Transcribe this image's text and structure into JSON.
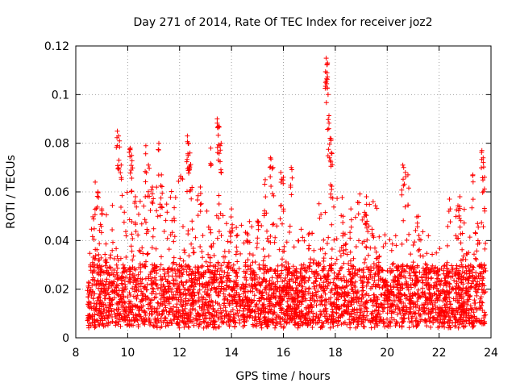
{
  "chart_data": {
    "type": "scatter",
    "title": "Day 271 of 2014, Rate Of TEC Index for receiver joz2",
    "xlabel": "GPS time / hours",
    "ylabel": "ROTI / TECUs",
    "xlim": [
      8,
      24
    ],
    "ylim": [
      0,
      0.12
    ],
    "grid": true,
    "marker": "+",
    "color": "#ff0000",
    "x_ticks": [
      8,
      10,
      12,
      14,
      16,
      18,
      20,
      22,
      24
    ],
    "y_ticks": [
      0,
      0.02,
      0.04,
      0.06,
      0.08,
      0.1,
      0.12
    ],
    "x_tick_labels": [
      "8",
      "10",
      "12",
      "14",
      "16",
      "18",
      "20",
      "22",
      "24"
    ],
    "y_tick_labels": [
      "0",
      "0.02",
      "0.04",
      "0.06",
      "0.08",
      "0.1",
      "0.12"
    ],
    "time_range": [
      8.45,
      23.8
    ],
    "baseline_band": [
      0.004,
      0.03
    ],
    "peaks": [
      {
        "x": 8.75,
        "y": 0.064
      },
      {
        "x": 8.85,
        "y": 0.06
      },
      {
        "x": 9.0,
        "y": 0.053
      },
      {
        "x": 9.6,
        "y": 0.085
      },
      {
        "x": 9.65,
        "y": 0.083
      },
      {
        "x": 9.75,
        "y": 0.071
      },
      {
        "x": 10.1,
        "y": 0.078
      },
      {
        "x": 10.15,
        "y": 0.075
      },
      {
        "x": 10.3,
        "y": 0.058
      },
      {
        "x": 10.7,
        "y": 0.079
      },
      {
        "x": 10.8,
        "y": 0.071
      },
      {
        "x": 10.95,
        "y": 0.062
      },
      {
        "x": 11.2,
        "y": 0.08
      },
      {
        "x": 11.3,
        "y": 0.067
      },
      {
        "x": 11.5,
        "y": 0.055
      },
      {
        "x": 12.3,
        "y": 0.083
      },
      {
        "x": 12.35,
        "y": 0.08
      },
      {
        "x": 12.4,
        "y": 0.076
      },
      {
        "x": 12.8,
        "y": 0.062
      },
      {
        "x": 13.2,
        "y": 0.078
      },
      {
        "x": 13.45,
        "y": 0.09
      },
      {
        "x": 13.5,
        "y": 0.087
      },
      {
        "x": 13.6,
        "y": 0.08
      },
      {
        "x": 14.0,
        "y": 0.053
      },
      {
        "x": 14.6,
        "y": 0.043
      },
      {
        "x": 15.0,
        "y": 0.048
      },
      {
        "x": 15.3,
        "y": 0.065
      },
      {
        "x": 15.5,
        "y": 0.074
      },
      {
        "x": 15.6,
        "y": 0.07
      },
      {
        "x": 15.9,
        "y": 0.068
      },
      {
        "x": 16.0,
        "y": 0.066
      },
      {
        "x": 16.3,
        "y": 0.07
      },
      {
        "x": 17.0,
        "y": 0.043
      },
      {
        "x": 17.65,
        "y": 0.115
      },
      {
        "x": 17.7,
        "y": 0.113
      },
      {
        "x": 17.68,
        "y": 0.109
      },
      {
        "x": 17.72,
        "y": 0.1
      },
      {
        "x": 17.75,
        "y": 0.086
      },
      {
        "x": 17.8,
        "y": 0.082
      },
      {
        "x": 17.85,
        "y": 0.076
      },
      {
        "x": 18.3,
        "y": 0.05
      },
      {
        "x": 18.6,
        "y": 0.053
      },
      {
        "x": 19.2,
        "y": 0.058
      },
      {
        "x": 20.6,
        "y": 0.071
      },
      {
        "x": 20.7,
        "y": 0.068
      },
      {
        "x": 20.8,
        "y": 0.067
      },
      {
        "x": 21.2,
        "y": 0.05
      },
      {
        "x": 22.4,
        "y": 0.057
      },
      {
        "x": 22.8,
        "y": 0.058
      },
      {
        "x": 23.3,
        "y": 0.067
      },
      {
        "x": 23.65,
        "y": 0.077
      },
      {
        "x": 23.7,
        "y": 0.074
      },
      {
        "x": 23.75,
        "y": 0.066
      }
    ]
  }
}
